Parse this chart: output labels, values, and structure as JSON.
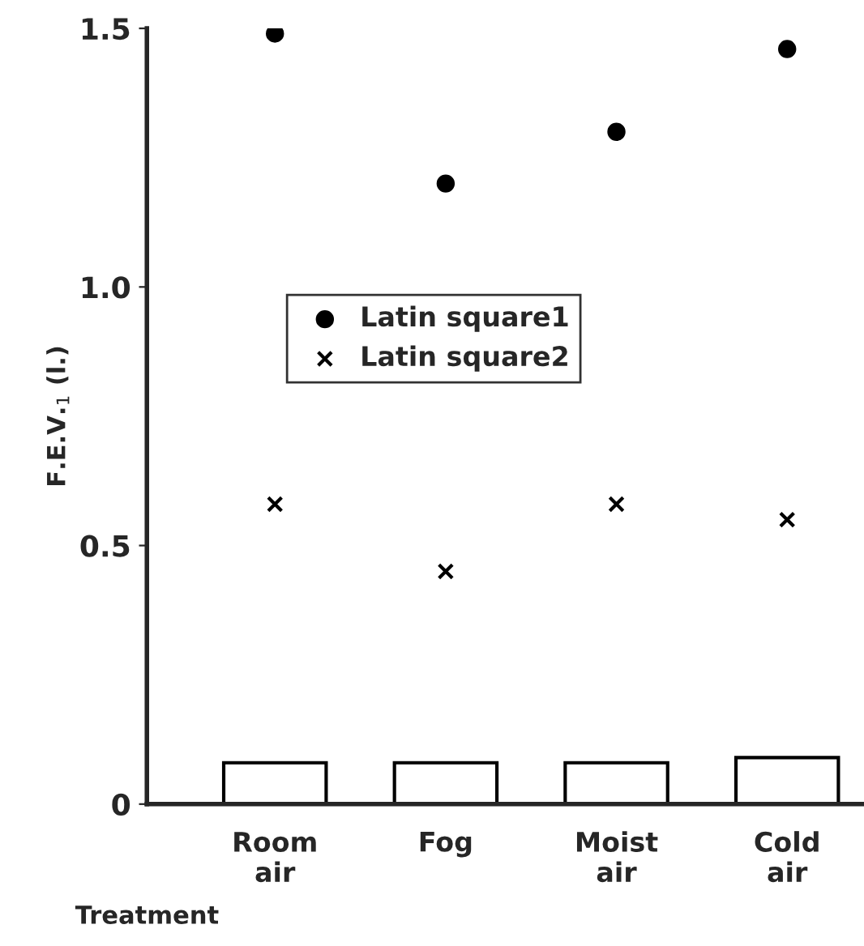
{
  "chart_data": {
    "type": "scatter",
    "xlabel": "Treatment",
    "ylabel": "F.E.V.$_{1}$ (l.)",
    "categories": [
      "Room\nair",
      "Fog",
      "Moist\nair",
      "Cold\nair"
    ],
    "series": [
      {
        "type": "bar",
        "color": "#ffffff",
        "values": [
          0.08,
          0.08,
          0.08,
          0.09
        ]
      },
      {
        "name": "Latin square1",
        "color": "#000000",
        "marker": "circle",
        "values": [
          1.49,
          1.2,
          1.3,
          1.46
        ]
      },
      {
        "name": "Latin square2",
        "color": "#000000",
        "marker": "cross",
        "values": [
          0.58,
          0.45,
          0.58,
          0.55
        ]
      }
    ],
    "ylim": [
      0,
      1.5
    ],
    "yticks": [
      0,
      0.5,
      {
        "value": 1,
        "label": "1.0"
      },
      1.5
    ],
    "grid": false,
    "legend": "center"
  }
}
